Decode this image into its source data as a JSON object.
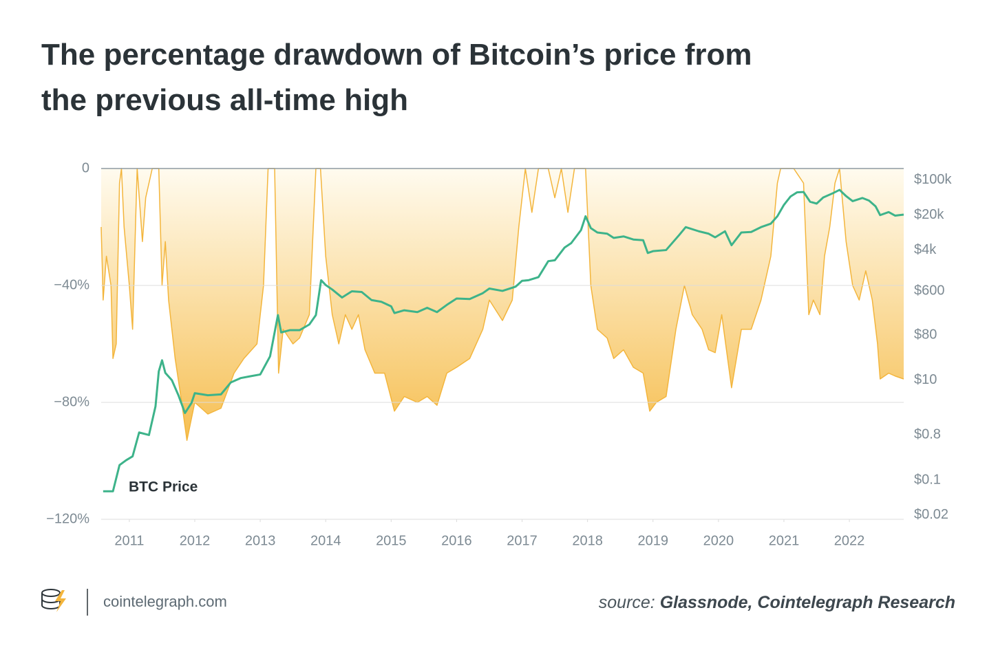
{
  "chart_data": {
    "type": "line",
    "title": "The percentage drawdown of Bitcoin’s price from the previous all-time high",
    "series": [
      {
        "name": "Drawdown",
        "color": "#f3b53c",
        "x": [
          2010.57,
          2010.6,
          2010.65,
          2010.72,
          2010.75,
          2010.8,
          2010.85,
          2010.88,
          2010.92,
          2011.0,
          2011.05,
          2011.1,
          2011.12,
          2011.2,
          2011.25,
          2011.35,
          2011.45,
          2011.5,
          2011.55,
          2011.6,
          2011.7,
          2011.8,
          2011.88,
          2012.0,
          2012.2,
          2012.4,
          2012.6,
          2012.75,
          2012.95,
          2013.05,
          2013.12,
          2013.22,
          2013.28,
          2013.35,
          2013.5,
          2013.6,
          2013.75,
          2013.85,
          2013.92,
          2014.0,
          2014.1,
          2014.2,
          2014.3,
          2014.4,
          2014.5,
          2014.6,
          2014.75,
          2014.9,
          2015.05,
          2015.2,
          2015.4,
          2015.55,
          2015.7,
          2015.85,
          2016.0,
          2016.2,
          2016.4,
          2016.5,
          2016.7,
          2016.85,
          2016.95,
          2017.05,
          2017.15,
          2017.25,
          2017.4,
          2017.5,
          2017.6,
          2017.7,
          2017.8,
          2017.97,
          2018.05,
          2018.15,
          2018.3,
          2018.4,
          2018.55,
          2018.7,
          2018.85,
          2018.95,
          2019.05,
          2019.2,
          2019.35,
          2019.48,
          2019.6,
          2019.75,
          2019.85,
          2019.95,
          2020.05,
          2020.2,
          2020.35,
          2020.5,
          2020.65,
          2020.8,
          2020.9,
          2020.95,
          2021.05,
          2021.15,
          2021.3,
          2021.38,
          2021.45,
          2021.55,
          2021.62,
          2021.7,
          2021.78,
          2021.85,
          2021.95,
          2022.05,
          2022.15,
          2022.25,
          2022.35,
          2022.43,
          2022.47,
          2022.6,
          2022.7,
          2022.83
        ],
        "values": [
          -20,
          -45,
          -30,
          -40,
          -65,
          -60,
          -5,
          0,
          -20,
          -40,
          -55,
          -15,
          0,
          -25,
          -10,
          0,
          0,
          -40,
          -25,
          -45,
          -65,
          -80,
          -93,
          -80,
          -84,
          -82,
          -70,
          -65,
          -60,
          -40,
          0,
          0,
          -70,
          -55,
          -60,
          -58,
          -50,
          0,
          0,
          -30,
          -50,
          -60,
          -50,
          -55,
          -50,
          -62,
          -70,
          -70,
          -83,
          -78,
          -80,
          -78,
          -81,
          -70,
          -68,
          -65,
          -55,
          -45,
          -52,
          -45,
          -20,
          0,
          -15,
          0,
          0,
          -10,
          0,
          -15,
          0,
          0,
          -40,
          -55,
          -58,
          -65,
          -62,
          -68,
          -70,
          -83,
          -80,
          -78,
          -55,
          -40,
          -50,
          -55,
          -62,
          -63,
          -50,
          -75,
          -55,
          -55,
          -45,
          -30,
          -5,
          0,
          0,
          0,
          -5,
          -50,
          -45,
          -50,
          -30,
          -20,
          -5,
          0,
          -25,
          -40,
          -45,
          -35,
          -45,
          -60,
          -72,
          -70,
          -71,
          -72
        ]
      },
      {
        "name": "BTC Price",
        "color": "#3db38a",
        "axis": "y2",
        "x": [
          2010.6,
          2010.75,
          2010.85,
          2010.95,
          2011.05,
          2011.15,
          2011.3,
          2011.4,
          2011.45,
          2011.5,
          2011.55,
          2011.65,
          2011.75,
          2011.85,
          2011.95,
          2012.0,
          2012.2,
          2012.4,
          2012.55,
          2012.7,
          2012.85,
          2013.0,
          2013.15,
          2013.27,
          2013.32,
          2013.45,
          2013.6,
          2013.75,
          2013.85,
          2013.93,
          2014.0,
          2014.1,
          2014.25,
          2014.4,
          2014.55,
          2014.7,
          2014.85,
          2015.0,
          2015.05,
          2015.2,
          2015.4,
          2015.55,
          2015.7,
          2015.85,
          2016.0,
          2016.2,
          2016.4,
          2016.5,
          2016.7,
          2016.9,
          2017.0,
          2017.1,
          2017.25,
          2017.4,
          2017.5,
          2017.65,
          2017.75,
          2017.9,
          2017.97,
          2018.05,
          2018.15,
          2018.3,
          2018.4,
          2018.55,
          2018.7,
          2018.85,
          2018.92,
          2019.0,
          2019.2,
          2019.4,
          2019.5,
          2019.7,
          2019.85,
          2019.95,
          2020.1,
          2020.2,
          2020.35,
          2020.5,
          2020.65,
          2020.8,
          2020.9,
          2021.0,
          2021.1,
          2021.2,
          2021.3,
          2021.4,
          2021.5,
          2021.6,
          2021.75,
          2021.85,
          2021.95,
          2022.05,
          2022.2,
          2022.3,
          2022.4,
          2022.47,
          2022.6,
          2022.7,
          2022.83
        ],
        "values": [
          0.06,
          0.06,
          0.2,
          0.25,
          0.3,
          0.9,
          0.8,
          3,
          15,
          25,
          14,
          10,
          5,
          2.2,
          3.5,
          5.5,
          5,
          5.2,
          9,
          11,
          12,
          13,
          30,
          200,
          90,
          100,
          100,
          130,
          200,
          1000,
          800,
          650,
          450,
          600,
          580,
          400,
          370,
          300,
          220,
          250,
          230,
          280,
          230,
          320,
          430,
          420,
          550,
          680,
          610,
          740,
          970,
          1000,
          1150,
          2400,
          2500,
          4500,
          5500,
          10000,
          19000,
          11000,
          9000,
          8500,
          7000,
          7500,
          6500,
          6300,
          3500,
          3800,
          4000,
          8000,
          11500,
          9500,
          8500,
          7200,
          9500,
          5000,
          9000,
          9200,
          11500,
          13500,
          19000,
          32000,
          47000,
          57000,
          58000,
          37000,
          34000,
          45000,
          55000,
          64000,
          48000,
          38000,
          44000,
          39000,
          30000,
          20000,
          23000,
          19500,
          20500
        ]
      }
    ],
    "xlim": [
      2010.57,
      2022.83
    ],
    "xticks": [
      2011,
      2012,
      2013,
      2014,
      2015,
      2016,
      2017,
      2018,
      2019,
      2020,
      2021,
      2022
    ],
    "ylim": [
      -120,
      0
    ],
    "yticks": [
      0,
      {
        "value": -40,
        "label": "−40%"
      },
      {
        "value": -80,
        "label": "−80%"
      },
      {
        "value": -120,
        "label": "−120%"
      }
    ],
    "y2lim": [
      0.0165,
      171000
    ],
    "y2log": true,
    "y2ticks": [
      {
        "value": 100000,
        "label": "$100k"
      },
      {
        "value": 20000,
        "label": "$20k"
      },
      {
        "value": 4000,
        "label": "$4k"
      },
      {
        "value": 600,
        "label": "$600"
      },
      {
        "value": 80,
        "label": "$80"
      },
      {
        "value": 10,
        "label": "$10"
      },
      {
        "value": 0.8,
        "label": "$0.8"
      },
      {
        "value": 0.1,
        "label": "$0.1"
      },
      {
        "value": 0.02,
        "label": "$0.02"
      }
    ],
    "grid": true,
    "site": "cointelegraph.com",
    "source_label": "source:",
    "source": "Glassnode, Cointelegraph Research"
  }
}
